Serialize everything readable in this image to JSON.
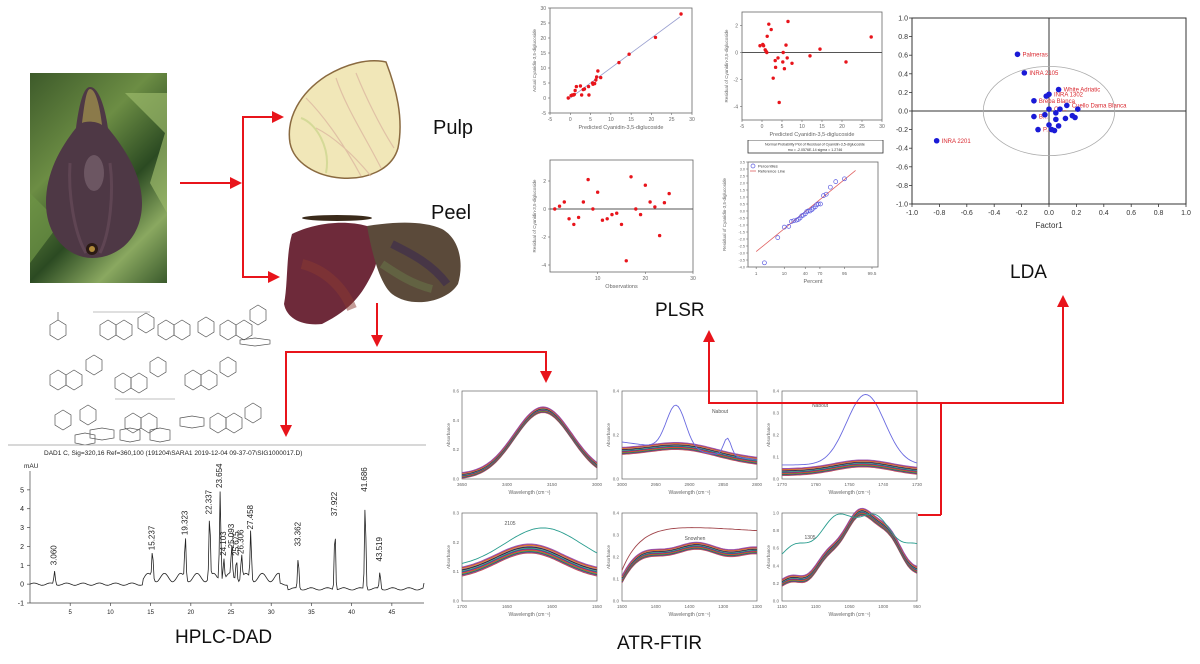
{
  "labels": {
    "pulp": "Pulp",
    "peel": "Peel",
    "plsr": "PLSR",
    "lda": "LDA",
    "hplc": "HPLC-DAD",
    "atr": "ATR-FTIR"
  },
  "colors": {
    "arrow": "#e8141b",
    "point_red": "#e8141b",
    "point_blue": "#1a1ad6",
    "lda_label": "#d9282f"
  },
  "chart_data": [
    {
      "id": "plsr-predicted-vs-actual",
      "type": "scatter",
      "title": "",
      "xlabel": "Predicted Cyanidin-3,5-diglucoside",
      "ylabel": "Actual Cyanidin-3,5-diglucoside",
      "xlim": [
        -5,
        30
      ],
      "ylim": [
        -5,
        30
      ],
      "xticks": [
        "-5",
        "0",
        "5",
        "10",
        "15",
        "20",
        "25",
        "30"
      ],
      "yticks": [
        "-5",
        "0",
        "5",
        "10",
        "15",
        "20",
        "25",
        "30"
      ],
      "points": [
        [
          -0.5,
          0
        ],
        [
          0.2,
          0.8
        ],
        [
          0.5,
          1
        ],
        [
          0.8,
          1
        ],
        [
          1,
          1.2
        ],
        [
          1.2,
          2.5
        ],
        [
          1.5,
          3.8
        ],
        [
          2.5,
          4
        ],
        [
          2.8,
          1
        ],
        [
          3.2,
          2.8
        ],
        [
          3.5,
          3
        ],
        [
          4.5,
          3.8
        ],
        [
          4.6,
          1
        ],
        [
          5.5,
          5
        ],
        [
          5.6,
          4.6
        ],
        [
          6,
          4.8
        ],
        [
          6.3,
          6
        ],
        [
          6.5,
          7
        ],
        [
          6.8,
          9
        ],
        [
          7.5,
          6.8
        ],
        [
          12,
          11.8
        ],
        [
          14.5,
          14.6
        ],
        [
          21,
          20.2
        ],
        [
          27.3,
          28
        ]
      ],
      "fit_line": [
        [
          -0.5,
          -0.5
        ],
        [
          27,
          27
        ]
      ]
    },
    {
      "id": "plsr-residual-vs-predicted",
      "type": "scatter",
      "title": "",
      "xlabel": "Predicted Cyanidin-3,5-diglucoside",
      "ylabel": "Residual of Cyanidin-3,5-diglucoside",
      "xlim": [
        -5,
        30
      ],
      "ylim": [
        -5,
        3
      ],
      "xticks": [
        "-5",
        "0",
        "5",
        "10",
        "15",
        "20",
        "25",
        "30"
      ],
      "yticks": [
        "-4",
        "-2",
        "0",
        "2"
      ],
      "points": [
        [
          -0.5,
          0.5
        ],
        [
          0.2,
          0.6
        ],
        [
          0.4,
          0.5
        ],
        [
          0.8,
          0.2
        ],
        [
          1,
          0.1
        ],
        [
          1.2,
          0
        ],
        [
          1.3,
          1.2
        ],
        [
          1.7,
          2.1
        ],
        [
          2.3,
          1.7
        ],
        [
          2.8,
          -1.9
        ],
        [
          3.3,
          -0.6
        ],
        [
          3.4,
          -1.1
        ],
        [
          4,
          -0.4
        ],
        [
          4.3,
          -3.7
        ],
        [
          5.2,
          -0.7
        ],
        [
          5.3,
          0
        ],
        [
          5.6,
          -1.2
        ],
        [
          6,
          0.55
        ],
        [
          6.3,
          -0.4
        ],
        [
          6.5,
          2.3
        ],
        [
          7.5,
          -0.8
        ],
        [
          12,
          -0.25
        ],
        [
          14.5,
          0.25
        ],
        [
          21,
          -0.7
        ],
        [
          27.3,
          1.15
        ]
      ],
      "hline": 0
    },
    {
      "id": "plsr-residual-vs-observation",
      "type": "scatter",
      "title": "",
      "xlabel": "Observations",
      "ylabel": "Residual of Cyanidin-3,5-diglucoside",
      "xlim": [
        0,
        30
      ],
      "ylim": [
        -4.5,
        3.5
      ],
      "xticks": [
        "10",
        "20",
        "30"
      ],
      "yticks": [
        "-4",
        "-2",
        "0",
        "2"
      ],
      "points": [
        [
          1,
          0
        ],
        [
          2,
          0.2
        ],
        [
          3,
          0.5
        ],
        [
          4,
          -0.7
        ],
        [
          5,
          -1.1
        ],
        [
          6,
          -0.6
        ],
        [
          7,
          0.5
        ],
        [
          8,
          2.1
        ],
        [
          9,
          0
        ],
        [
          10,
          1.2
        ],
        [
          11,
          -0.8
        ],
        [
          12,
          -0.7
        ],
        [
          13,
          -0.4
        ],
        [
          14,
          -0.3
        ],
        [
          15,
          -1.1
        ],
        [
          16,
          -3.7
        ],
        [
          17,
          2.3
        ],
        [
          18,
          0
        ],
        [
          19,
          -0.4
        ],
        [
          20,
          1.7
        ],
        [
          21,
          0.5
        ],
        [
          22,
          0.15
        ],
        [
          23,
          -1.9
        ],
        [
          24,
          0.45
        ],
        [
          25,
          1.1
        ]
      ],
      "hline": 0
    },
    {
      "id": "plsr-normal-probability",
      "type": "scatter",
      "title": "Normal Probability Plot of Residual of Cyanidin-3,5-diglucoside",
      "subtitle": "mu = -2.0576E-14  sigma = 1.2746",
      "xlabel": "Percent",
      "ylabel": "Residual of Cyanidin-3,5-diglucoside",
      "xticks": [
        "1",
        "10",
        "40",
        "70",
        "95",
        "99.5"
      ],
      "yticks": [
        "-4.0",
        "-3.5",
        "-3.0",
        "-2.5",
        "-2.0",
        "-1.5",
        "-1.0",
        "-0.5",
        "0.0",
        "0.5",
        "1.0",
        "1.5",
        "2.0",
        "2.5",
        "3.0",
        "3.5"
      ],
      "ylim": [
        -4.0,
        3.5
      ],
      "legend": [
        "Percentiles",
        "Reference Line"
      ],
      "legend_position": "top-left",
      "points": [
        [
          2,
          -3.7
        ],
        [
          6,
          -1.9
        ],
        [
          10,
          -1.15
        ],
        [
          14,
          -1.1
        ],
        [
          17,
          -0.75
        ],
        [
          20,
          -0.7
        ],
        [
          24,
          -0.65
        ],
        [
          27,
          -0.6
        ],
        [
          30,
          -0.5
        ],
        [
          33,
          -0.35
        ],
        [
          36,
          -0.3
        ],
        [
          40,
          -0.2
        ],
        [
          43,
          -0.05
        ],
        [
          46,
          0
        ],
        [
          50,
          0
        ],
        [
          54,
          0.1
        ],
        [
          57,
          0.2
        ],
        [
          61,
          0.3
        ],
        [
          64,
          0.45
        ],
        [
          67,
          0.5
        ],
        [
          71,
          0.5
        ],
        [
          76,
          1.1
        ],
        [
          80,
          1.2
        ],
        [
          85,
          1.7
        ],
        [
          90,
          2.1
        ],
        [
          95,
          2.3
        ]
      ],
      "ref_line": [
        [
          1,
          -2.9
        ],
        [
          98,
          2.9
        ]
      ]
    },
    {
      "id": "lda-plot",
      "type": "scatter",
      "title": "",
      "xlabel": "Factor1",
      "ylabel": "",
      "xlim": [
        -1.0,
        1.0
      ],
      "ylim": [
        -1.0,
        1.0
      ],
      "xticks": [
        "-1.0",
        "-0.8",
        "-0.6",
        "-0.4",
        "-0.2",
        "0.0",
        "0.2",
        "0.4",
        "0.6",
        "0.8",
        "1.0"
      ],
      "yticks": [
        "-1.0",
        "-0.8",
        "-0.6",
        "-0.4",
        "-0.2",
        "0.0",
        "0.2",
        "0.4",
        "0.6",
        "0.8",
        "1.0"
      ],
      "ellipse": {
        "cx": 0.0,
        "cy": 0.0,
        "rx": 0.48,
        "ry": 0.48
      },
      "points": [
        {
          "x": -0.23,
          "y": 0.61,
          "label": "Palmeras"
        },
        {
          "x": -0.18,
          "y": 0.41,
          "label": "INRA 2105"
        },
        {
          "x": -0.82,
          "y": -0.32,
          "label": "INRA 2201"
        },
        {
          "x": 0.07,
          "y": 0.23,
          "label": "White Adriatic"
        },
        {
          "x": 0.0,
          "y": 0.18,
          "label": "INRA 1302"
        },
        {
          "x": -0.02,
          "y": 0.16,
          "label": ""
        },
        {
          "x": -0.11,
          "y": 0.11,
          "label": "Breba Blanca"
        },
        {
          "x": 0.13,
          "y": 0.06,
          "label": "Cuello Dama Blanca"
        },
        {
          "x": 0.0,
          "y": 0.02,
          "label": "Ca..."
        },
        {
          "x": 0.08,
          "y": 0.02,
          "label": ""
        },
        {
          "x": 0.21,
          "y": 0.02,
          "label": ""
        },
        {
          "x": 0.05,
          "y": -0.02,
          "label": ""
        },
        {
          "x": -0.11,
          "y": -0.06,
          "label": "B..."
        },
        {
          "x": -0.03,
          "y": -0.04,
          "label": ""
        },
        {
          "x": 0.12,
          "y": -0.08,
          "label": ""
        },
        {
          "x": 0.17,
          "y": -0.05,
          "label": ""
        },
        {
          "x": 0.19,
          "y": -0.07,
          "label": ""
        },
        {
          "x": 0.05,
          "y": -0.09,
          "label": ""
        },
        {
          "x": 0.0,
          "y": -0.15,
          "label": ""
        },
        {
          "x": 0.07,
          "y": -0.16,
          "label": ""
        },
        {
          "x": -0.08,
          "y": -0.2,
          "label": "P..."
        },
        {
          "x": 0.02,
          "y": -0.2,
          "label": ""
        },
        {
          "x": 0.04,
          "y": -0.21,
          "label": ""
        }
      ]
    },
    {
      "id": "hplc-chromatogram",
      "type": "line",
      "title": "DAD1 C, Sig=320,16 Ref=360,100 (191204\\SARA1 2019-12-04 09-37-07\\SIG1000017.D)",
      "ylabel": "mAU",
      "xlim": [
        0,
        49
      ],
      "ylim": [
        -1,
        6
      ],
      "xticks": [
        "5",
        "10",
        "15",
        "20",
        "25",
        "30",
        "35",
        "40",
        "45"
      ],
      "yticks": [
        "-1",
        "0",
        "1",
        "2",
        "3",
        "4",
        "5"
      ],
      "peaks": [
        {
          "rt": "3.060",
          "x": 3.06,
          "height": 0.7
        },
        {
          "rt": "15.237",
          "x": 15.237,
          "height": 1.5
        },
        {
          "rt": "19.323",
          "x": 19.323,
          "height": 2.3
        },
        {
          "rt": "22.337",
          "x": 22.337,
          "height": 3.4
        },
        {
          "rt": "23.654",
          "x": 23.654,
          "height": 4.8
        },
        {
          "rt": "24.103",
          "x": 24.103,
          "height": 1.2
        },
        {
          "rt": "25.093",
          "x": 25.093,
          "height": 1.6
        },
        {
          "rt": "25.675",
          "x": 25.675,
          "height": 1.2
        },
        {
          "rt": "26.306",
          "x": 26.306,
          "height": 1.3
        },
        {
          "rt": "27.458",
          "x": 27.458,
          "height": 2.6
        },
        {
          "rt": "33.362",
          "x": 33.362,
          "height": 1.7
        },
        {
          "rt": "37.922",
          "x": 37.922,
          "height": 3.3
        },
        {
          "rt": "41.686",
          "x": 41.686,
          "height": 4.6
        },
        {
          "rt": "43.519",
          "x": 43.519,
          "height": 0.9
        }
      ]
    },
    {
      "id": "ftir-panel-1",
      "type": "line",
      "xlabel": "Wavelength (cm⁻¹)",
      "ylabel": "Absorbance",
      "xticks": [
        "3650",
        "3400",
        "3150",
        "3000"
      ],
      "yticks": [
        "0.0",
        "0.2",
        "0.4",
        "0.6"
      ],
      "ylim": [
        0,
        0.6
      ],
      "annotation": ""
    },
    {
      "id": "ftir-panel-2",
      "type": "line",
      "xlabel": "Wavelength (cm⁻¹)",
      "ylabel": "Absorbance",
      "xticks": [
        "3000",
        "2950",
        "2900",
        "2850",
        "2800"
      ],
      "yticks": [
        "0.0",
        "0.2",
        "0.4"
      ],
      "ylim": [
        0,
        0.5
      ],
      "annotation": "Nabout"
    },
    {
      "id": "ftir-panel-3",
      "type": "line",
      "xlabel": "Wavelength (cm⁻¹)",
      "ylabel": "Absorbance",
      "xticks": [
        "1770",
        "1760",
        "1750",
        "1740",
        "1730"
      ],
      "yticks": [
        "0.0",
        "0.1",
        "0.2",
        "0.3",
        "0.4"
      ],
      "ylim": [
        0,
        0.4
      ],
      "annotation": "Nabout"
    },
    {
      "id": "ftir-panel-4",
      "type": "line",
      "xlabel": "Wavelength (cm⁻¹)",
      "ylabel": "Absorbance",
      "xticks": [
        "1700",
        "1650",
        "1600",
        "1550"
      ],
      "yticks": [
        "0.0",
        "0.1",
        "0.2",
        "0.3"
      ],
      "ylim": [
        0,
        0.3
      ],
      "annotation": "2105"
    },
    {
      "id": "ftir-panel-5",
      "type": "line",
      "xlabel": "Wavelength (cm⁻¹)",
      "ylabel": "Absorbance",
      "xticks": [
        "1500",
        "1400",
        "1400",
        "1300",
        "1300"
      ],
      "yticks": [
        "0.0",
        "0.1",
        "0.2",
        "0.3",
        "0.4"
      ],
      "ylim": [
        0,
        0.4
      ],
      "annotation": "Snowhen"
    },
    {
      "id": "ftir-panel-6",
      "type": "line",
      "xlabel": "Wavelength (cm⁻¹)",
      "ylabel": "Absorbance",
      "xticks": [
        "1150",
        "1100",
        "1050",
        "1000",
        "950"
      ],
      "yticks": [
        "0.0",
        "0.2",
        "0.4",
        "0.6",
        "0.8",
        "1.0"
      ],
      "ylim": [
        0,
        1.0
      ],
      "annotation": "1305"
    }
  ]
}
